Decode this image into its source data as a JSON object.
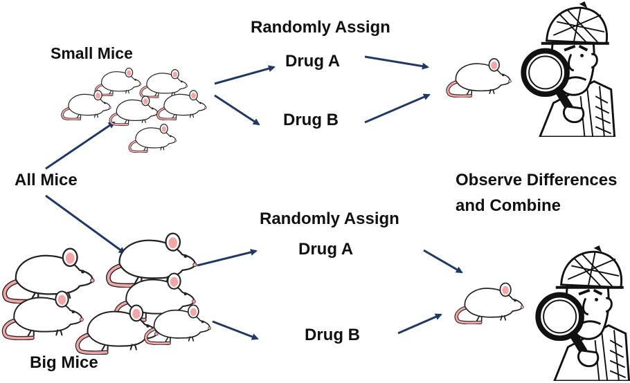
{
  "labels": {
    "small_mice": "Small Mice",
    "all_mice": "All Mice",
    "big_mice": "Big Mice",
    "assign_top": "Randomly Assign",
    "assign_bottom": "Randomly Assign",
    "drug_a_top": "Drug A",
    "drug_b_top": "Drug B",
    "drug_a_bottom": "Drug A",
    "drug_b_bottom": "Drug B",
    "observe_line1": "Observe Differences",
    "observe_line2": "and Combine"
  },
  "colors": {
    "arrow": "#1f3864",
    "mouse_body": "#ffffff",
    "mouse_outline": "#222222",
    "mouse_pink": "#f4a6a6"
  },
  "icons": [
    "mouse-icon",
    "detective-icon",
    "magnifying-glass-icon",
    "arrow-icon"
  ]
}
